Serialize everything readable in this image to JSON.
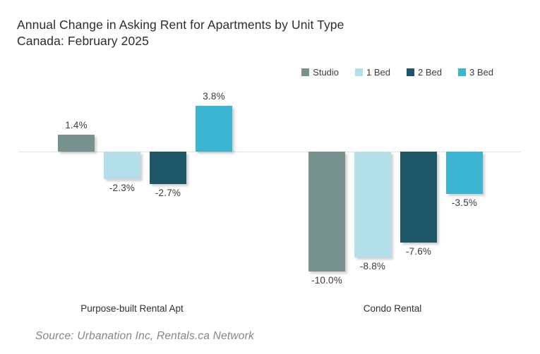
{
  "title": {
    "line1": "Annual Change in Asking Rent for Apartments by Unit Type",
    "line2": "Canada: February 2025"
  },
  "source_note": "Source: Urbanation Inc, Rentals.ca Network",
  "chart_data": {
    "type": "bar",
    "title": "Annual Change in Asking Rent for Apartments by Unit Type",
    "subtitle": "Canada: February 2025",
    "categories": [
      "Purpose-built Rental Apt",
      "Condo Rental"
    ],
    "series": [
      {
        "name": "Studio",
        "color": "#76928F",
        "values": [
          1.4,
          -10.0
        ],
        "labels": [
          "1.4%",
          "-10.0%"
        ]
      },
      {
        "name": "1 Bed",
        "color": "#B2DFEA",
        "values": [
          -2.3,
          -8.8
        ],
        "labels": [
          "-2.3%",
          "-8.8%"
        ]
      },
      {
        "name": "2 Bed",
        "color": "#1D5666",
        "values": [
          -2.7,
          -7.6
        ],
        "labels": [
          "-2.7%",
          "-7.6%"
        ]
      },
      {
        "name": "3 Bed",
        "color": "#3CB5D3",
        "values": [
          3.8,
          -3.5
        ],
        "labels": [
          "3.8%",
          "-3.5%"
        ]
      }
    ],
    "ylim": [
      -10.5,
      4.5
    ],
    "grid": false,
    "legend_position": "top-right",
    "zero_line_color": "#E4E4E4",
    "value_label_color": "#3A3A3A",
    "background_color": "#FFFFFF"
  }
}
